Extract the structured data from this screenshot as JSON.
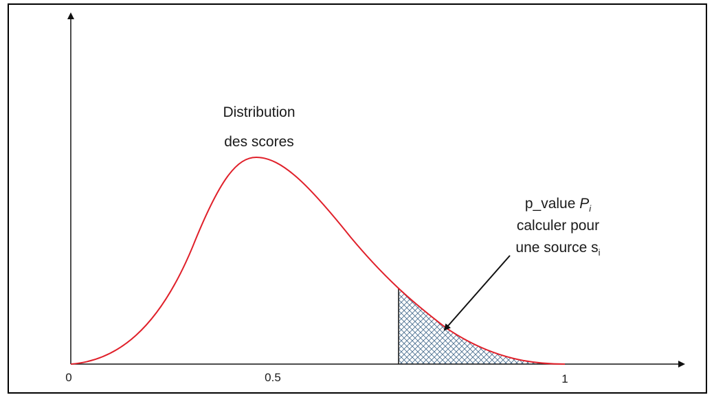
{
  "labels": {
    "curve": [
      "Distribution",
      "des scores"
    ],
    "p_value": {
      "line1": "p_value",
      "symbol": "P",
      "symbol_sub": "i",
      "line2": "calculer pour",
      "line3": "une source s",
      "line3_sub": "i"
    }
  },
  "axis": {
    "ticks": [
      "0",
      "0.5",
      "1"
    ]
  }
}
